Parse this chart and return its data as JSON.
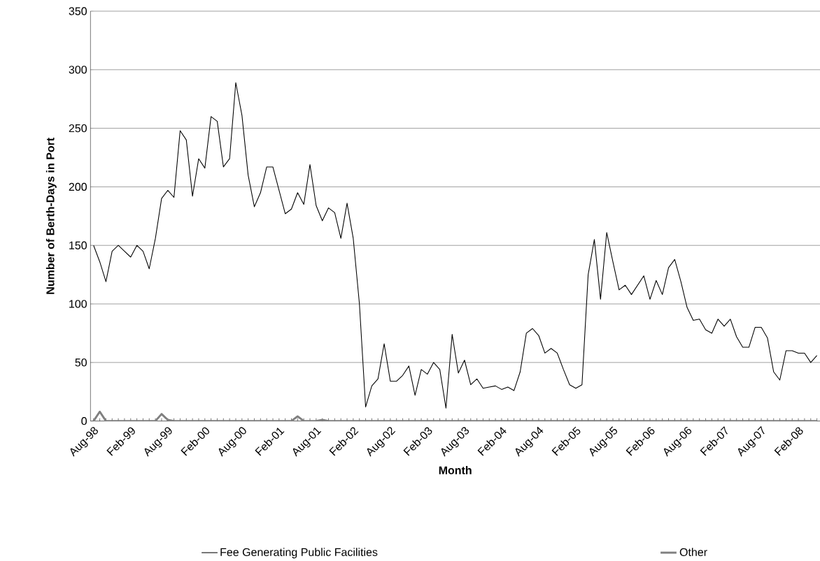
{
  "chart_data": {
    "type": "line",
    "xlabel": "Month",
    "ylabel": "Number of Berth-Days in Port",
    "categories": [
      "Aug-98",
      null,
      null,
      null,
      null,
      null,
      "Feb-99",
      null,
      null,
      null,
      null,
      null,
      "Aug-99",
      null,
      null,
      null,
      null,
      null,
      "Feb-00",
      null,
      null,
      null,
      null,
      null,
      "Aug-00",
      null,
      null,
      null,
      null,
      null,
      "Feb-01",
      null,
      null,
      null,
      null,
      null,
      "Aug-01",
      null,
      null,
      null,
      null,
      null,
      "Feb-02",
      null,
      null,
      null,
      null,
      null,
      "Aug-02",
      null,
      null,
      null,
      null,
      null,
      "Feb-03",
      null,
      null,
      null,
      null,
      null,
      "Aug-03",
      null,
      null,
      null,
      null,
      null,
      "Feb-04",
      null,
      null,
      null,
      null,
      null,
      "Aug-04",
      null,
      null,
      null,
      null,
      null,
      "Feb-05",
      null,
      null,
      null,
      null,
      null,
      "Aug-05",
      null,
      null,
      null,
      null,
      null,
      "Feb-06",
      null,
      null,
      null,
      null,
      null,
      "Aug-06",
      null,
      null,
      null,
      null,
      null,
      "Feb-07",
      null,
      null,
      null,
      null,
      null,
      "Aug-07",
      null,
      null,
      null,
      null,
      null,
      "Feb-08",
      null,
      null,
      null
    ],
    "series": [
      {
        "name": "Fee Generating Public Facilities",
        "color": "#000000",
        "values": [
          150,
          136,
          119,
          145,
          150,
          145,
          140,
          150,
          145,
          130,
          156,
          190,
          197,
          191,
          248,
          240,
          192,
          224,
          216,
          260,
          256,
          217,
          224,
          289,
          261,
          210,
          183,
          195,
          217,
          217,
          197,
          177,
          181,
          195,
          185,
          219,
          184,
          171,
          182,
          178,
          156,
          186,
          156,
          100,
          12,
          30,
          36,
          66,
          34,
          34,
          39,
          47,
          22,
          44,
          40,
          50,
          44,
          11,
          74,
          41,
          52,
          31,
          36,
          28,
          29,
          30,
          27,
          29,
          26,
          42,
          75,
          79,
          73,
          58,
          62,
          58,
          44,
          31,
          28,
          31,
          125,
          155,
          104,
          161,
          136,
          112,
          116,
          108,
          116,
          124,
          104,
          120,
          108,
          131,
          138,
          119,
          97,
          86,
          87,
          78,
          75,
          87,
          81,
          87,
          72,
          63,
          63,
          80,
          80,
          71,
          42,
          35,
          60,
          60,
          58,
          58,
          50,
          56
        ]
      },
      {
        "name": "Other",
        "color": "#808080",
        "values": [
          0,
          8,
          0,
          0,
          0,
          0,
          0,
          0,
          0,
          0,
          0,
          6,
          1,
          0,
          0,
          0,
          0,
          0,
          0,
          0,
          0,
          0,
          0,
          0,
          0,
          0,
          0,
          0,
          0,
          0,
          0,
          0,
          0,
          4,
          0,
          0,
          0,
          1,
          0,
          0,
          0,
          0,
          0,
          0,
          0,
          0,
          0,
          0,
          0,
          0,
          0,
          0,
          0,
          0,
          0,
          0,
          0,
          0,
          0,
          0,
          0,
          0,
          0,
          0,
          0,
          0,
          0,
          0,
          0,
          0,
          0,
          0,
          0,
          0,
          0,
          0,
          0,
          0,
          0,
          0,
          0,
          0,
          0,
          0,
          0,
          0,
          0,
          0,
          0,
          0,
          0,
          0,
          0,
          0,
          0,
          0,
          0,
          0,
          0,
          0,
          0,
          0,
          0,
          0,
          0,
          0,
          0,
          0,
          0,
          0,
          0,
          0,
          0,
          0,
          0,
          0,
          0,
          0
        ]
      }
    ],
    "ylim": [
      0,
      350
    ],
    "yticks": [
      0,
      50,
      100,
      150,
      200,
      250,
      300,
      350
    ],
    "grid": "y",
    "legend": "bottom",
    "marker": "none",
    "line_style": "solid"
  }
}
